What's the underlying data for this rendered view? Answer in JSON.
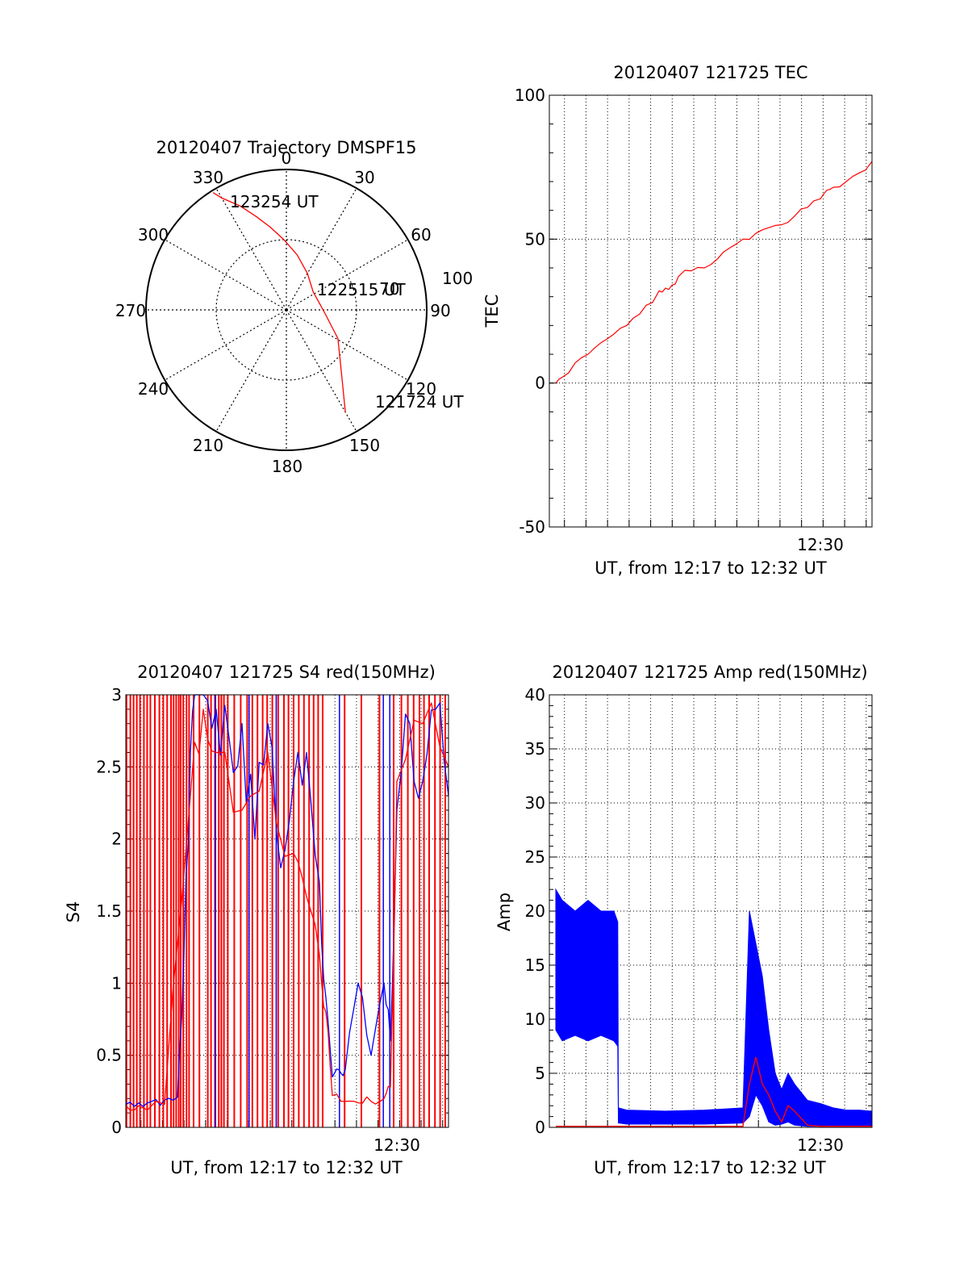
{
  "chart_data": [
    {
      "id": "trajectory",
      "type": "polar",
      "title": "20120407 Trajectory DMSPF15",
      "angle_labels": [
        "0",
        "30",
        "60",
        "90",
        "120",
        "150",
        "180",
        "210",
        "240",
        "270",
        "300",
        "330"
      ],
      "radial_labels": [
        "70",
        "100"
      ],
      "annotations": [
        {
          "text": "123254 UT",
          "at": "start"
        },
        {
          "text": "122515 UT",
          "at": "middle"
        },
        {
          "text": "121724 UT",
          "at": "end"
        }
      ],
      "series": [
        {
          "color": "#ff0000",
          "azimuth_deg": [
            328,
            330,
            336,
            342,
            349,
            358,
            11,
            30,
            56,
            93,
            119,
            141,
            150
          ],
          "r_norm": [
            0.985,
            0.92,
            0.81,
            0.7,
            0.6,
            0.5,
            0.4,
            0.3,
            0.23,
            0.27,
            0.42,
            0.63,
            0.84
          ]
        }
      ]
    },
    {
      "id": "tec",
      "type": "line",
      "title": "20120407 121725 TEC",
      "ylabel": "TEC",
      "xlabel": "UT, from 12:17 to 12:32 UT",
      "xlim": [
        12.29,
        12.54
      ],
      "ylim": [
        -50,
        100
      ],
      "yticks": [
        "100",
        "50",
        "0",
        "-50"
      ],
      "xticks": [
        {
          "value": 12.5,
          "label": "12:30"
        }
      ],
      "grid": true,
      "series": [
        {
          "color": "#ff0000",
          "x": [
            12.295,
            12.3,
            12.31,
            12.32,
            12.33,
            12.34,
            12.35,
            12.36,
            12.37,
            12.375,
            12.38,
            12.385,
            12.39,
            12.4,
            12.41,
            12.42,
            12.43,
            12.44,
            12.45,
            12.46,
            12.47,
            12.48,
            12.49,
            12.5,
            12.505,
            12.51,
            12.52,
            12.53,
            12.54
          ],
          "y": [
            0,
            2,
            7,
            10,
            14,
            17,
            20,
            24,
            28,
            32,
            33,
            34,
            37,
            39,
            40,
            43,
            47,
            50,
            52,
            54,
            55,
            58,
            61,
            64,
            67,
            68,
            70,
            73,
            77
          ]
        }
      ]
    },
    {
      "id": "s4",
      "type": "line",
      "title": "20120407 121725 S4 red(150MHz)",
      "ylabel": "S4",
      "xlabel": "UT, from 12:17 to 12:32 UT",
      "xlim": [
        12.29,
        12.54
      ],
      "ylim": [
        0,
        3
      ],
      "yticks": [
        "3",
        "2.5",
        "2",
        "1.5",
        "1",
        "0.5",
        "0"
      ],
      "xticks": [
        {
          "value": 12.5,
          "label": "12:30"
        }
      ],
      "grid": true,
      "series": [
        {
          "color": "#0000ff",
          "x": [
            12.29,
            12.3,
            12.31,
            12.32,
            12.33,
            12.335,
            12.34,
            12.345,
            12.35,
            12.36,
            12.37,
            12.38,
            12.39,
            12.4,
            12.41,
            12.42,
            12.43,
            12.44,
            12.445,
            12.45,
            12.455,
            12.46,
            12.47,
            12.48,
            12.49,
            12.495,
            12.5,
            12.51,
            12.52,
            12.53,
            12.54
          ],
          "y": [
            0.16,
            0.17,
            0.18,
            0.19,
            0.21,
            1.2,
            2.6,
            3.0,
            3.0,
            2.9,
            2.7,
            2.8,
            2.0,
            2.8,
            1.8,
            2.4,
            2.6,
            1.7,
            0.9,
            0.35,
            0.4,
            0.4,
            1.0,
            0.5,
            1.0,
            0.6,
            2.2,
            2.8,
            2.4,
            2.9,
            2.3
          ]
        },
        {
          "color": "#ff0000",
          "x": [
            12.29,
            12.3,
            12.32,
            12.34,
            12.35,
            12.36,
            12.38,
            12.4,
            12.42,
            12.43,
            12.44,
            12.445,
            12.45,
            12.46,
            12.47,
            12.48,
            12.49,
            12.495,
            12.5,
            12.52,
            12.54
          ],
          "y": [
            0.15,
            0.15,
            0.16,
            2.3,
            2.9,
            2.6,
            2.2,
            2.6,
            1.9,
            1.6,
            1.2,
            0.8,
            0.22,
            0.18,
            0.17,
            0.18,
            0.2,
            0.28,
            2.4,
            2.8,
            2.5
          ]
        }
      ],
      "red_spikes_x": [
        12.2905,
        12.2935,
        12.296,
        12.2985,
        12.301,
        12.304,
        12.3065,
        12.309,
        12.3125,
        12.316,
        12.319,
        12.322,
        12.325,
        12.327,
        12.329,
        12.331,
        12.3325,
        12.3345,
        12.337,
        12.339,
        12.3425,
        12.347,
        12.3535,
        12.356,
        12.359,
        12.362,
        12.364,
        12.366,
        12.369,
        12.374,
        12.379,
        12.384,
        12.388,
        12.392,
        12.396,
        12.3995,
        12.4035,
        12.408,
        12.4125,
        12.416,
        12.42,
        12.424,
        12.428,
        12.432,
        12.4355,
        12.439,
        12.4425,
        12.4595,
        12.4725,
        12.4865,
        12.4975,
        12.5035,
        12.5085,
        12.513,
        12.5175,
        12.521,
        12.525,
        12.5295,
        12.5335,
        12.5375
      ],
      "blue_spikes_x": [
        12.3595,
        12.3855,
        12.4065,
        12.4555,
        12.4895,
        12.4945
      ]
    },
    {
      "id": "amp",
      "type": "line",
      "title": "20120407 121725 Amp red(150MHz)",
      "ylabel": "Amp",
      "xlabel": "UT, from 12:17 to 12:32 UT",
      "xlim": [
        12.29,
        12.54
      ],
      "ylim": [
        0,
        40
      ],
      "yticks": [
        "40",
        "35",
        "30",
        "25",
        "20",
        "15",
        "10",
        "5",
        "0"
      ],
      "xticks": [
        {
          "value": 12.5,
          "label": "12:30"
        }
      ],
      "grid": true,
      "series": [
        {
          "name": "blue-upper",
          "color": "#0000ff",
          "x": [
            12.295,
            12.3,
            12.31,
            12.32,
            12.33,
            12.34,
            12.343,
            12.3435,
            12.35,
            12.38,
            12.41,
            12.44,
            12.445,
            12.45,
            12.455,
            12.46,
            12.465,
            12.47,
            12.475,
            12.48,
            12.49,
            12.5,
            12.51,
            12.52,
            12.53,
            12.54
          ],
          "y": [
            22,
            21,
            20,
            21,
            20,
            20,
            19,
            1.8,
            1.6,
            1.5,
            1.6,
            1.8,
            20,
            17,
            14,
            9,
            5,
            3.5,
            5,
            4,
            2.5,
            2.2,
            1.8,
            1.6,
            1.6,
            1.5
          ]
        },
        {
          "name": "blue-lower",
          "color": "#0000ff",
          "x": [
            12.295,
            12.3,
            12.31,
            12.32,
            12.33,
            12.34,
            12.343,
            12.3435,
            12.35,
            12.38,
            12.41,
            12.44,
            12.445,
            12.45,
            12.455,
            12.46,
            12.465,
            12.47,
            12.475,
            12.48,
            12.49,
            12.5,
            12.51,
            12.52,
            12.53,
            12.54
          ],
          "y": [
            9,
            8,
            8.5,
            8,
            8.5,
            8,
            7.5,
            0.4,
            0.3,
            0.3,
            0.3,
            0.4,
            1,
            3,
            2,
            0.5,
            0.2,
            0.3,
            0.5,
            0.2,
            0.1,
            0.1,
            0.1,
            0.1,
            0.1,
            0.1
          ]
        },
        {
          "name": "red",
          "color": "#ff0000",
          "x": [
            12.295,
            12.343,
            12.344,
            12.44,
            12.445,
            12.45,
            12.455,
            12.46,
            12.465,
            12.47,
            12.475,
            12.48,
            12.49,
            12.5,
            12.54
          ],
          "y": [
            0.1,
            0.1,
            0.1,
            0.1,
            4,
            6.5,
            4,
            3,
            1.5,
            0.5,
            2,
            1.5,
            0.2,
            0.1,
            0.1
          ]
        }
      ]
    }
  ]
}
